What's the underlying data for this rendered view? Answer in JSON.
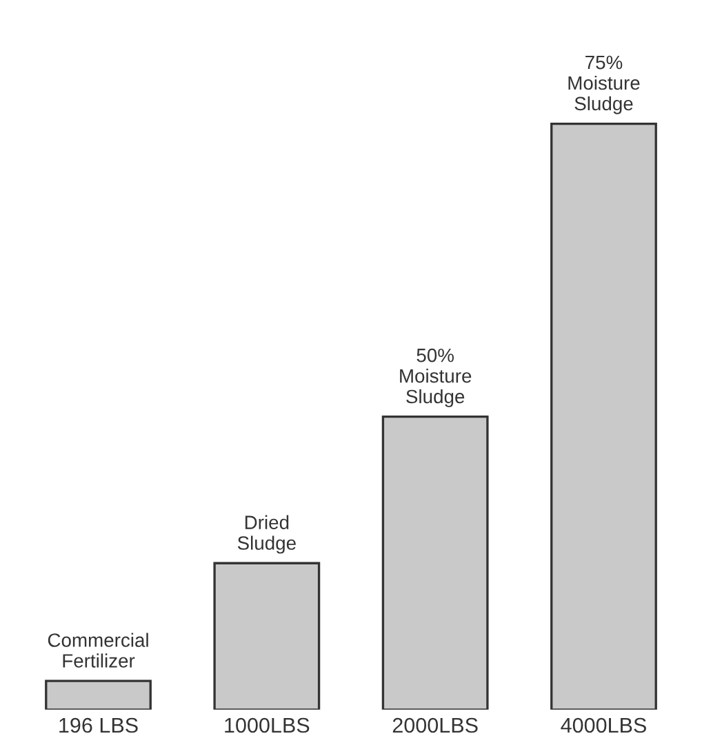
{
  "chart_data": {
    "type": "bar",
    "categories": [
      "Commercial\nFertilizer",
      "Dried\nSludge",
      "50%\nMoisture\nSludge",
      "75%\nMoisture\nSludge"
    ],
    "values": [
      196,
      1000,
      2000,
      4000
    ],
    "value_labels": [
      "196 LBS",
      "1000LBS",
      "2000LBS",
      "4000LBS"
    ],
    "color": "#c9c9c9"
  }
}
